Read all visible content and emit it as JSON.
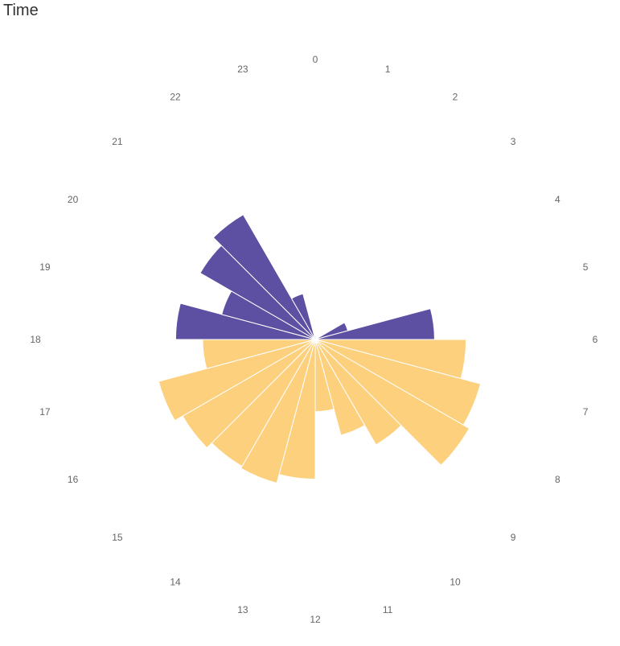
{
  "chart_data": {
    "type": "bar",
    "polar": true,
    "title": "Time",
    "categories": [
      "0",
      "1",
      "2",
      "3",
      "4",
      "5",
      "6",
      "7",
      "8",
      "9",
      "10",
      "11",
      "12",
      "13",
      "14",
      "15",
      "16",
      "17",
      "18",
      "19",
      "20",
      "21",
      "22",
      "23"
    ],
    "values": [
      0,
      0,
      0,
      0,
      0,
      15,
      53,
      67,
      76,
      79,
      54,
      44,
      32,
      62,
      66,
      65,
      68,
      72,
      50,
      62,
      43,
      59,
      64,
      21
    ],
    "colors": {
      "dark": "#5d4fa1",
      "light": "#fcd07d"
    },
    "color_by_category": [
      "dark",
      "dark",
      "dark",
      "dark",
      "dark",
      "dark",
      "dark",
      "light",
      "light",
      "light",
      "light",
      "light",
      "light",
      "light",
      "light",
      "light",
      "light",
      "light",
      "light",
      "dark",
      "dark",
      "dark",
      "dark",
      "dark"
    ]
  }
}
